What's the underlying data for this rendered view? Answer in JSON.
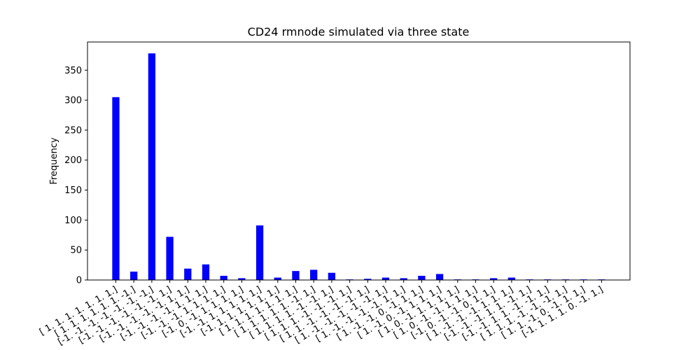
{
  "chart_data": {
    "type": "bar",
    "title": "CD24 rmnode simulated via three state",
    "xlabel": "",
    "ylabel": "Frequency",
    "ylim": [
      0,
      397
    ],
    "yticks": [
      0,
      50,
      100,
      150,
      200,
      250,
      300,
      350
    ],
    "bar_color": "#0000ff",
    "categories": [
      "[ 1.  1.  1.  1.  1.  1.  1.]",
      "[ 1.  1.  1.  1.  1.  1. -1.]",
      "[-1. -1. -1. -1. -1. -1. -1.]",
      "[-1. -1. -1. -1. -1. -1.  1.]",
      "[-1. -1. -1. -1. -1.  1.  1.]",
      "[-1. -1. -1. -1.  1.  1.  1.]",
      "[-1. -1. -1.  1.  1.  1.  1.]",
      "[-1.  0. -1.  1.  1.  1.  1.]",
      "[-1. -1.  1.  1.  1.  1.  1.]",
      "[-1.  1.  1.  1.  1.  1.  1.]",
      "[ 1.  1.  1.  1.  1.  1.  1.]",
      "[ 1.  1.  1.  1.  1. -1.  1.]",
      "[ 1.  1.  1.  1. -1. -1.  1.]",
      "[ 1.  1.  1. -1. -1. -1.  1.]",
      "[ 1.  1. -1. -1. -1. -1.  1.]",
      "[ 1. -1. -1. -1. -1. -1.  1.]",
      "[ 1. -1. -1. -1. -1.  1.  1.]",
      "[ 1. -1. -1.  0. -1.  1.  1.]",
      "[ 1. -1.  0. -1.  1.  1.  1.]",
      "[ 1.  0. -1.  1.  1.  1.  1.]",
      "[ 1.  0. -1. -1.  1.  1.  1.]",
      "[-1.  0. -1. -1.  0.  1.  1.]",
      "[ 1. -1. -1. -1.  1.  1.  1.]",
      "[-1. -1. -1.  1.  1. -1.  1.]",
      "[-1. -1.  1.  1. -1. -1.  1.]",
      "[ 1.  1.  1. -1. -1. -1.  1.]",
      "[ 1.  1. -1.  0. -1.  1.  1.]",
      "[-1.  1.  1.  1.  0. -1.  1.]"
    ],
    "values": [
      305,
      14,
      378,
      72,
      19,
      26,
      7,
      3,
      91,
      4,
      15,
      17,
      12,
      1,
      2,
      4,
      3,
      7,
      10,
      1,
      1,
      3,
      4,
      1,
      1,
      1,
      1,
      1
    ]
  }
}
